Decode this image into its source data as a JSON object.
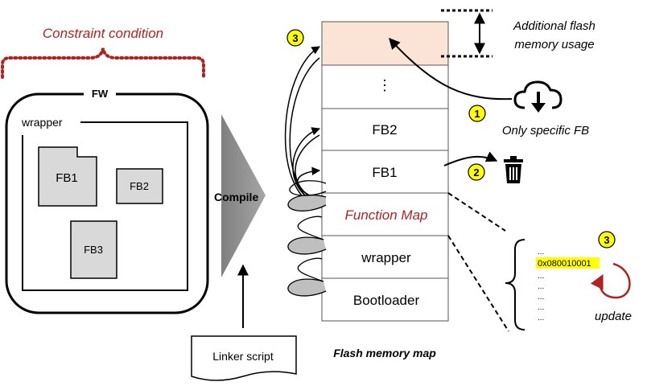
{
  "constraint": {
    "label": "Constraint condition",
    "color": "#b22222"
  },
  "fw": {
    "title": "FW",
    "wrapper_label": "wrapper",
    "blocks": [
      {
        "label": "FB1"
      },
      {
        "label": "FB2"
      },
      {
        "label": "FB3"
      }
    ]
  },
  "compile": {
    "label": "Compile"
  },
  "linker": {
    "label": "Linker script"
  },
  "flash": {
    "caption": "Flash memory map",
    "cells": [
      {
        "label": ""
      },
      {
        "label": "⋮"
      },
      {
        "label": "FB2"
      },
      {
        "label": "FB1"
      },
      {
        "label": "Function Map",
        "color": "#b22222"
      },
      {
        "label": "wrapper"
      },
      {
        "label": "Bootloader"
      }
    ],
    "highlight_fill": "#fbe3d6"
  },
  "annotations": {
    "additional_usage": [
      "Additional flash",
      "memory usage"
    ],
    "only_fb": "Only specific FB",
    "update": "update"
  },
  "badges": {
    "b1": "1",
    "b2": "2",
    "b3_left": "3",
    "b3_right": "3",
    "color": "#ffff00"
  },
  "function_map_detail": {
    "rows": [
      "...",
      "0x080010001",
      "...",
      "...",
      "...",
      "...",
      "..."
    ],
    "highlight_color": "#ffff00"
  },
  "icons": {
    "download": "cloud-download-icon",
    "trash": "trash-icon",
    "refresh": "update-arrow-icon"
  }
}
